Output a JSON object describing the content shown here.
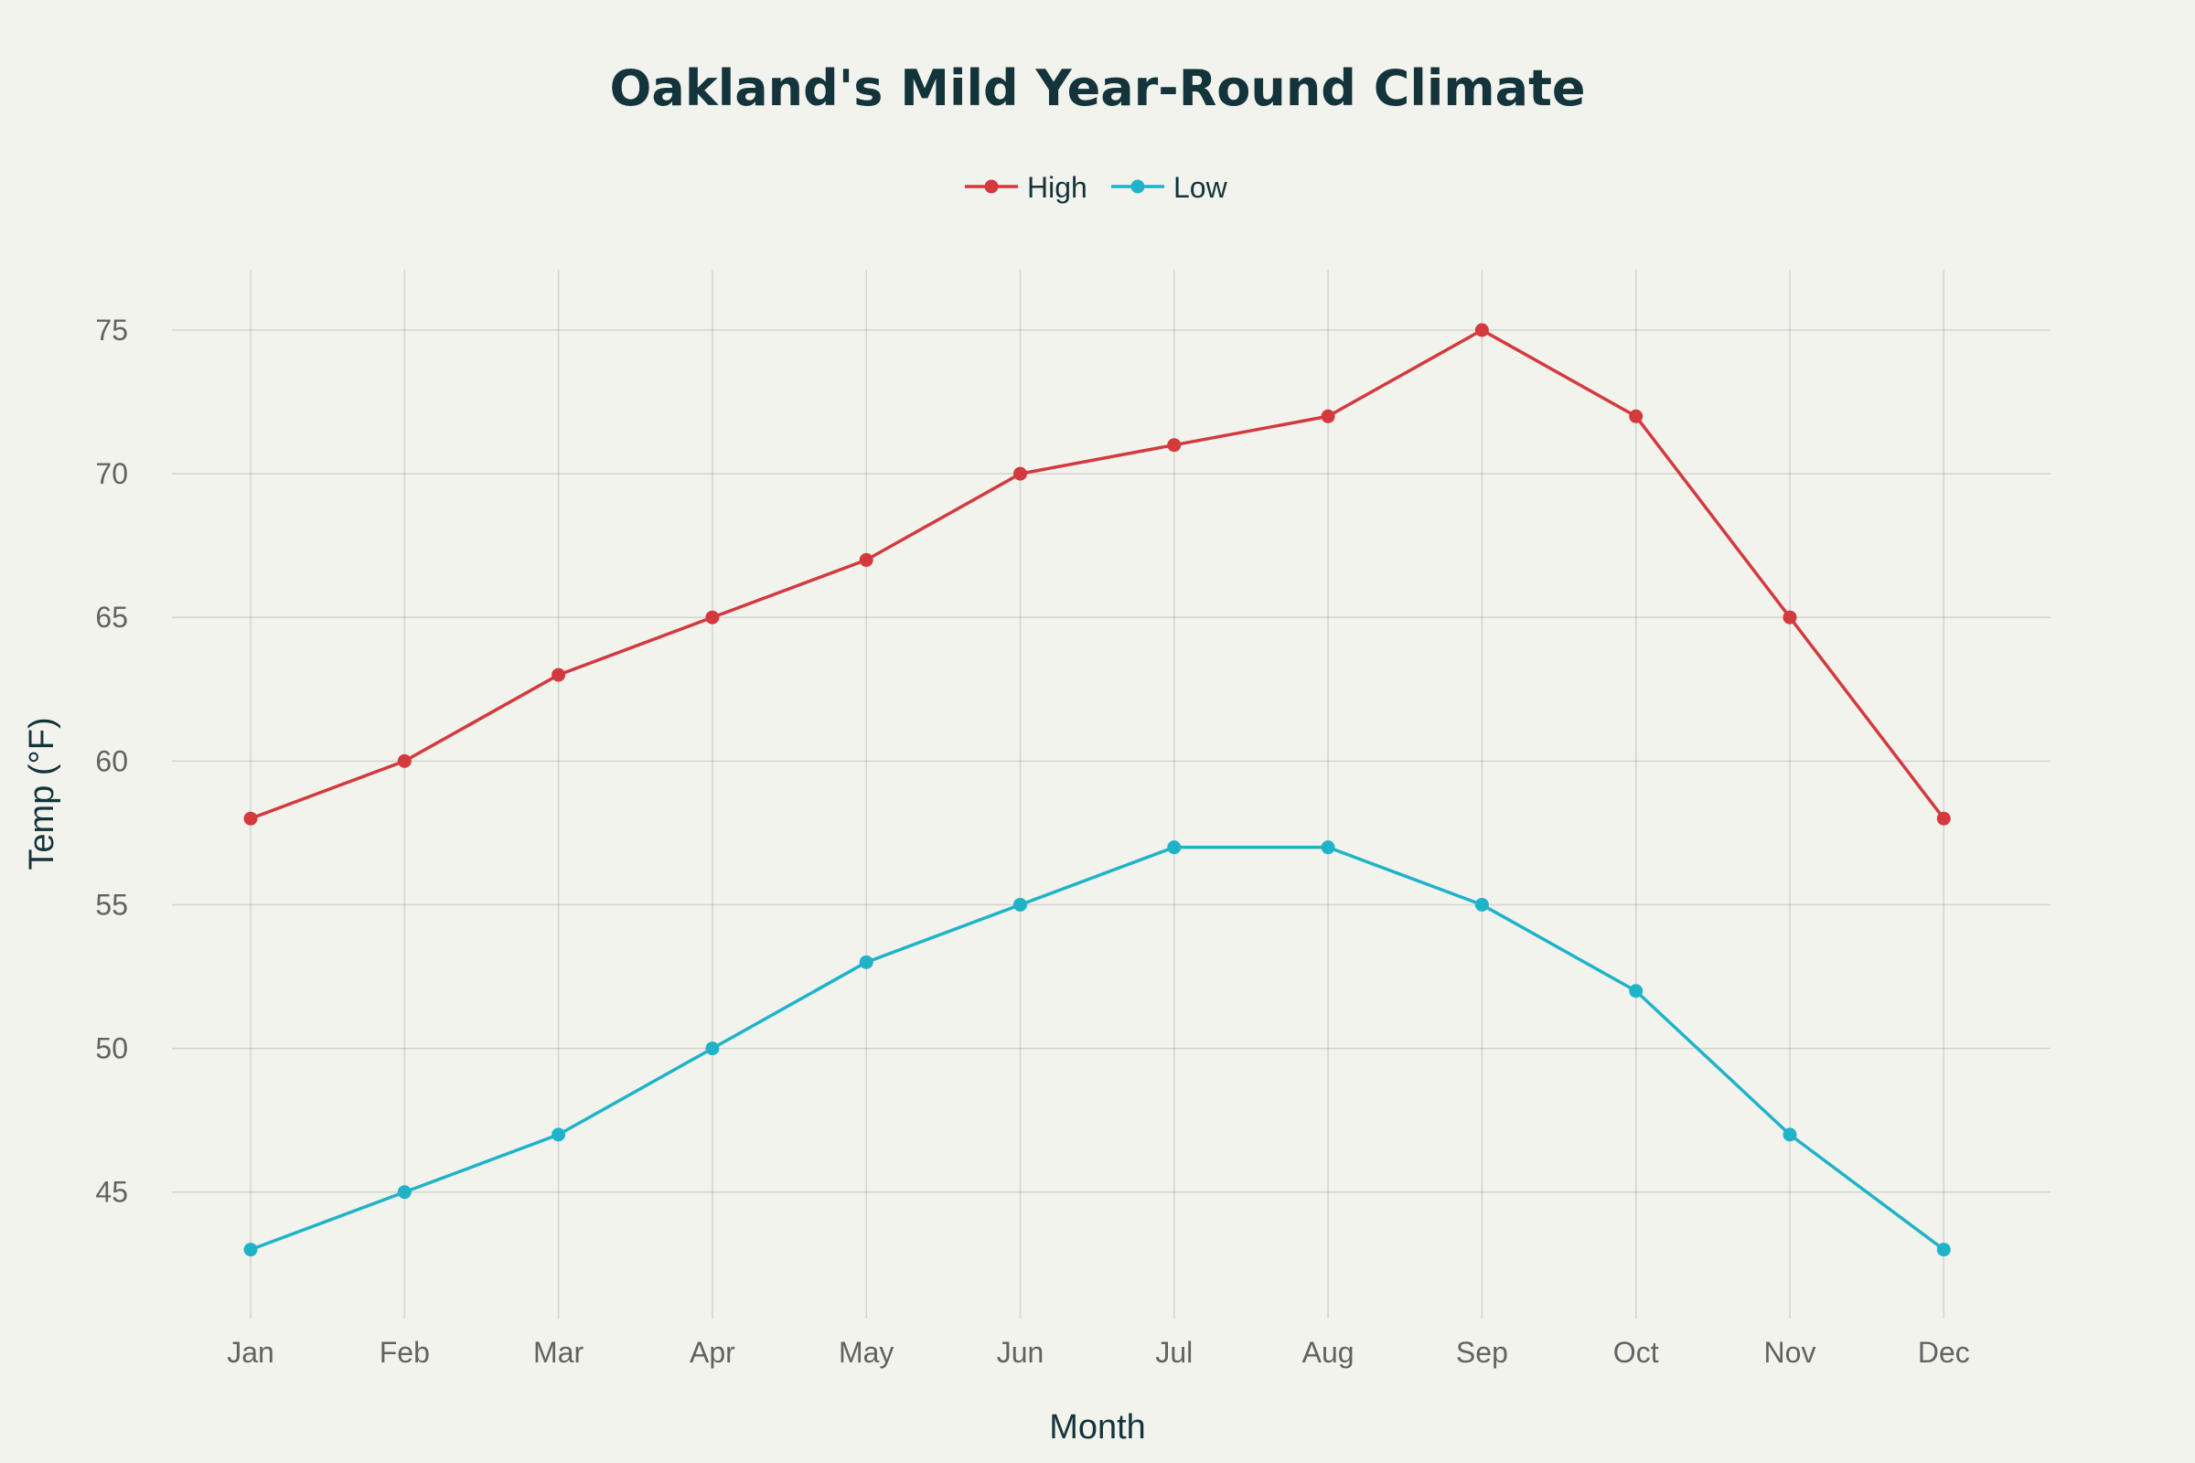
{
  "chart_data": {
    "type": "line",
    "title": "Oakland's Mild Year-Round Climate",
    "xlabel": "Month",
    "ylabel": "Temp (°F)",
    "categories": [
      "Jan",
      "Feb",
      "Mar",
      "Apr",
      "May",
      "Jun",
      "Jul",
      "Aug",
      "Sep",
      "Oct",
      "Nov",
      "Dec"
    ],
    "series": [
      {
        "name": "High",
        "color": "#d4393d",
        "values": [
          58,
          60,
          63,
          65,
          67,
          70,
          71,
          72,
          75,
          72,
          65,
          58
        ]
      },
      {
        "name": "Low",
        "color": "#1fb3c9",
        "values": [
          43,
          45,
          47,
          50,
          53,
          55,
          57,
          57,
          55,
          52,
          47,
          43
        ]
      }
    ],
    "yticks": [
      45,
      50,
      55,
      60,
      65,
      70,
      75
    ],
    "ylim": [
      40.6,
      77.1
    ],
    "grid": true,
    "legend_position": "top-center"
  }
}
